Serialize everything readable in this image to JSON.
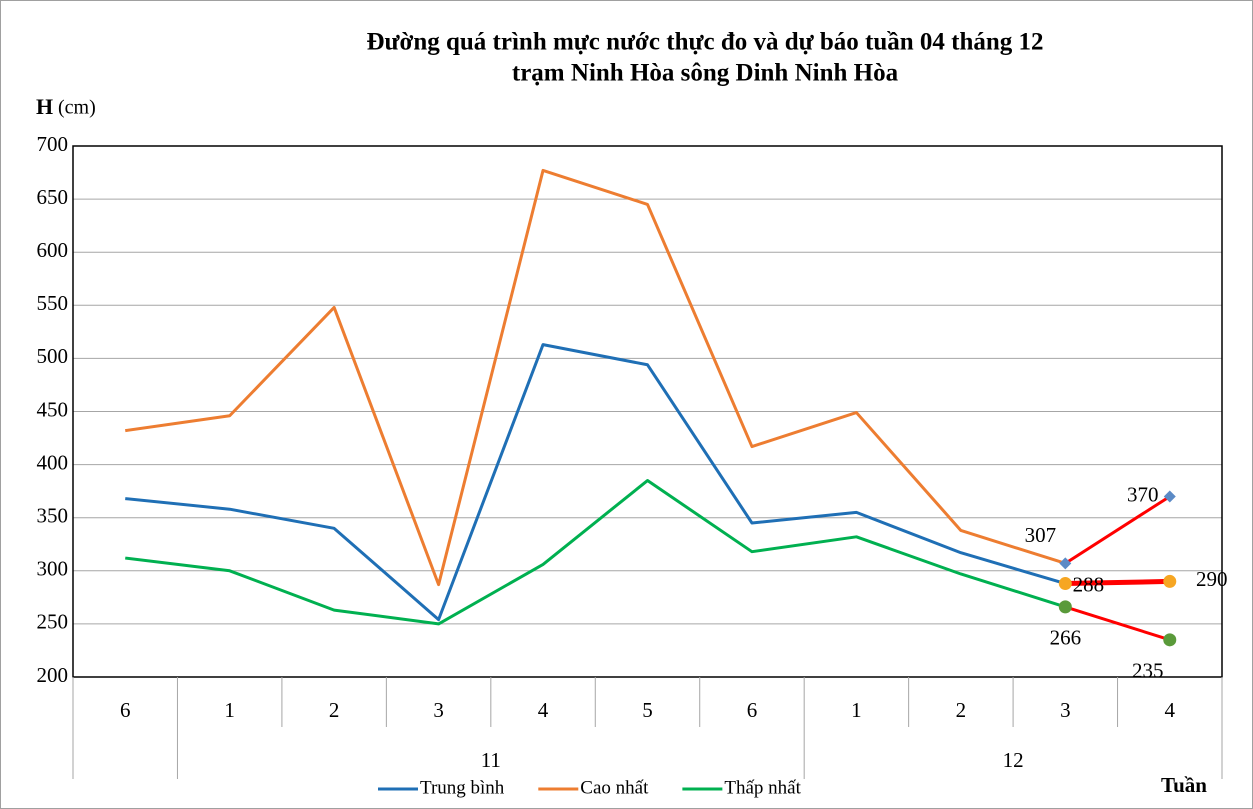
{
  "chart_data": {
    "type": "line",
    "title": "Đường quá trình mực nước thực đo và dự báo tuần 04 tháng 12",
    "subtitle": "trạm Ninh Hòa sông Dinh Ninh Hòa",
    "y_label": "H",
    "y_unit": "(cm)",
    "x_label": "Tuần",
    "categories": [
      "6",
      "1",
      "2",
      "3",
      "4",
      "5",
      "6",
      "1",
      "2",
      "3",
      "4"
    ],
    "category_groups": [
      null,
      "11",
      "11",
      "11",
      "11",
      "11",
      "11",
      "12",
      "12",
      "12",
      "12"
    ],
    "ylim": [
      200,
      700
    ],
    "yticks": [
      200,
      250,
      300,
      350,
      400,
      450,
      500,
      550,
      600,
      650,
      700
    ],
    "grid": true,
    "legend": "bottom",
    "series": [
      {
        "name": "Trung bình",
        "color": "#1f6fb5",
        "values": [
          368,
          358,
          340,
          254,
          513,
          494,
          345,
          355,
          317,
          288,
          null
        ]
      },
      {
        "name": "Cao nhất",
        "color": "#ed7d31",
        "values": [
          432,
          446,
          548,
          287,
          677,
          645,
          417,
          449,
          338,
          307,
          null
        ]
      },
      {
        "name": "Thấp nhất",
        "color": "#00b050",
        "values": [
          312,
          300,
          263,
          250,
          306,
          385,
          318,
          332,
          297,
          266,
          null
        ]
      }
    ],
    "forecast": [
      {
        "color": "#ff0000",
        "marker": "diamond",
        "marker_color": "#5b8ac6",
        "values": [
          null,
          null,
          null,
          null,
          null,
          null,
          null,
          null,
          null,
          307,
          370
        ]
      },
      {
        "color": "#ff0000",
        "marker": "circle",
        "marker_color": "#f6a623",
        "values": [
          null,
          null,
          null,
          null,
          null,
          null,
          null,
          null,
          null,
          288,
          290
        ]
      },
      {
        "color": "#ff0000",
        "marker": "circle",
        "marker_color": "#5a9a3a",
        "values": [
          null,
          null,
          null,
          null,
          null,
          null,
          null,
          null,
          null,
          266,
          235
        ]
      }
    ]
  }
}
